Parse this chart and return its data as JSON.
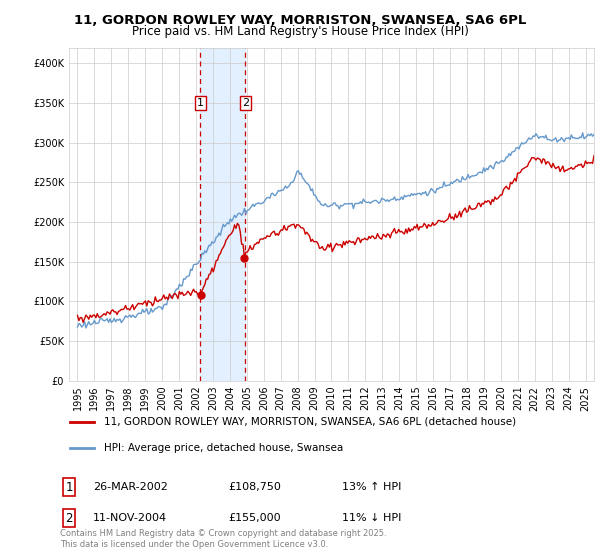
{
  "title": "11, GORDON ROWLEY WAY, MORRISTON, SWANSEA, SA6 6PL",
  "subtitle": "Price paid vs. HM Land Registry's House Price Index (HPI)",
  "legend_line1": "11, GORDON ROWLEY WAY, MORRISTON, SWANSEA, SA6 6PL (detached house)",
  "legend_line2": "HPI: Average price, detached house, Swansea",
  "transaction1_label": "1",
  "transaction1_date": "26-MAR-2002",
  "transaction1_price": "£108,750",
  "transaction1_hpi": "13% ↑ HPI",
  "transaction2_label": "2",
  "transaction2_date": "11-NOV-2004",
  "transaction2_price": "£155,000",
  "transaction2_hpi": "11% ↓ HPI",
  "footer": "Contains HM Land Registry data © Crown copyright and database right 2025.\nThis data is licensed under the Open Government Licence v3.0.",
  "red_color": "#cc0000",
  "blue_color": "#6699cc",
  "highlight_color": "#ddeeff",
  "transaction1_x": 2002.23,
  "transaction2_x": 2004.87,
  "ylim": [
    0,
    420000
  ],
  "xlim": [
    1994.5,
    2025.5
  ]
}
